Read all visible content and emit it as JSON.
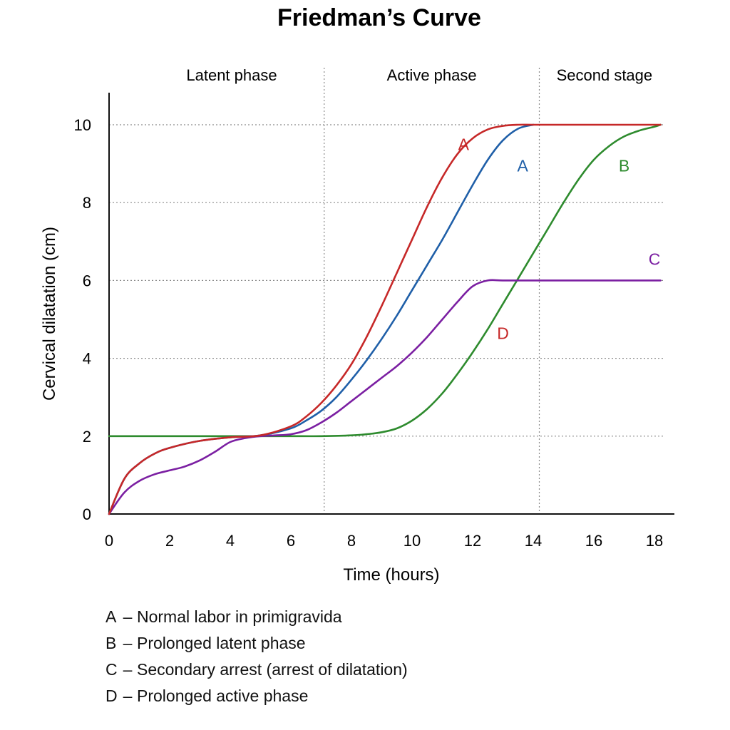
{
  "chart_data": {
    "type": "line",
    "title": "Friedman’s Curve",
    "xlabel": "Time (hours)",
    "ylabel": "Cervical dilatation (cm)",
    "xlim": [
      0,
      18.5
    ],
    "ylim": [
      0,
      10.7
    ],
    "xticks": [
      0,
      2,
      4,
      6,
      8,
      10,
      12,
      14,
      16,
      18
    ],
    "yticks": [
      0,
      2,
      4,
      6,
      8,
      10
    ],
    "grid": "horizontal dotted",
    "phases": [
      {
        "label": "Latent phase",
        "start": 0,
        "end": 7.1
      },
      {
        "label": "Active phase",
        "start": 7.1,
        "end": 14.2
      },
      {
        "label": "Second stage",
        "start": 14.2,
        "end": 18.5
      }
    ],
    "colors": {
      "red": "#c62828",
      "blue": "#1f5fa8",
      "green": "#2e8b2e",
      "purple": "#7b1fa2",
      "grid": "#8a8a8a"
    },
    "series": [
      {
        "name": "A",
        "color": "#c62828",
        "x": [
          0,
          0.5,
          1,
          1.5,
          2,
          3,
          4,
          5,
          6,
          6.5,
          7,
          7.5,
          8,
          8.5,
          9,
          9.5,
          10,
          10.5,
          11,
          11.5,
          12,
          12.5,
          13,
          13.5,
          14,
          15,
          16,
          17,
          18.2
        ],
        "y": [
          0,
          0.9,
          1.3,
          1.55,
          1.7,
          1.88,
          1.97,
          2.02,
          2.25,
          2.5,
          2.85,
          3.3,
          3.85,
          4.55,
          5.35,
          6.2,
          7.05,
          7.9,
          8.65,
          9.25,
          9.65,
          9.88,
          9.97,
          10,
          10,
          10,
          10,
          10,
          10
        ]
      },
      {
        "name": "A",
        "color": "#1f5fa8",
        "x": [
          0,
          0.5,
          1,
          1.5,
          2,
          3,
          4,
          5,
          6,
          6.5,
          7,
          7.5,
          8,
          8.5,
          9,
          9.5,
          10,
          10.5,
          11,
          11.5,
          12,
          12.5,
          13,
          13.5,
          14
        ],
        "y": [
          0,
          0.9,
          1.3,
          1.55,
          1.7,
          1.88,
          1.97,
          2.02,
          2.2,
          2.4,
          2.65,
          3.0,
          3.45,
          3.95,
          4.5,
          5.1,
          5.75,
          6.4,
          7.05,
          7.75,
          8.45,
          9.1,
          9.6,
          9.9,
          10
        ]
      },
      {
        "name": "B",
        "color": "#2e8b2e",
        "x": [
          0,
          4,
          5,
          6,
          7,
          8,
          8.5,
          9,
          9.5,
          10,
          10.5,
          11,
          11.5,
          12,
          12.5,
          13,
          13.5,
          14,
          14.5,
          15,
          15.5,
          16,
          16.5,
          17,
          17.5,
          18,
          18.2
        ],
        "y": [
          2,
          2,
          2,
          2,
          2,
          2.02,
          2.05,
          2.1,
          2.2,
          2.4,
          2.7,
          3.1,
          3.6,
          4.15,
          4.75,
          5.4,
          6.05,
          6.7,
          7.35,
          8.0,
          8.6,
          9.1,
          9.45,
          9.7,
          9.85,
          9.95,
          10
        ]
      },
      {
        "name": "C",
        "color": "#7b1fa2",
        "x": [
          0,
          0.5,
          1,
          1.5,
          2,
          2.5,
          3,
          3.5,
          4,
          4.5,
          5,
          5.5,
          6,
          6.5,
          7,
          7.5,
          8,
          8.5,
          9,
          9.5,
          10,
          10.5,
          11,
          11.5,
          12,
          12.5,
          13,
          14,
          15,
          16,
          17,
          18.2
        ],
        "y": [
          0,
          0.55,
          0.85,
          1.02,
          1.12,
          1.22,
          1.38,
          1.6,
          1.85,
          1.95,
          2.0,
          2.02,
          2.05,
          2.15,
          2.35,
          2.6,
          2.9,
          3.2,
          3.5,
          3.8,
          4.15,
          4.55,
          5.0,
          5.45,
          5.85,
          6,
          6,
          6,
          6,
          6,
          6,
          6
        ]
      }
    ],
    "curve_labels": [
      {
        "text": "A",
        "color": "#c62828",
        "x": 11.7,
        "y": 9.35
      },
      {
        "text": "A",
        "color": "#1f5fa8",
        "x": 13.65,
        "y": 8.8
      },
      {
        "text": "B",
        "color": "#2e8b2e",
        "x": 17.0,
        "y": 8.8
      },
      {
        "text": "C",
        "color": "#7b1fa2",
        "x": 18.0,
        "y": 6.4
      },
      {
        "text": "D",
        "color": "#c62828",
        "x": 13.0,
        "y": 4.5
      }
    ]
  },
  "legend": [
    {
      "key": "A",
      "dash": "–",
      "text": "Normal labor in primigravida"
    },
    {
      "key": "B",
      "dash": "–",
      "text": "Prolonged latent phase"
    },
    {
      "key": "C",
      "dash": "–",
      "text": "Secondary arrest (arrest of dilatation)"
    },
    {
      "key": "D",
      "dash": "–",
      "text": "Prolonged active phase"
    }
  ]
}
